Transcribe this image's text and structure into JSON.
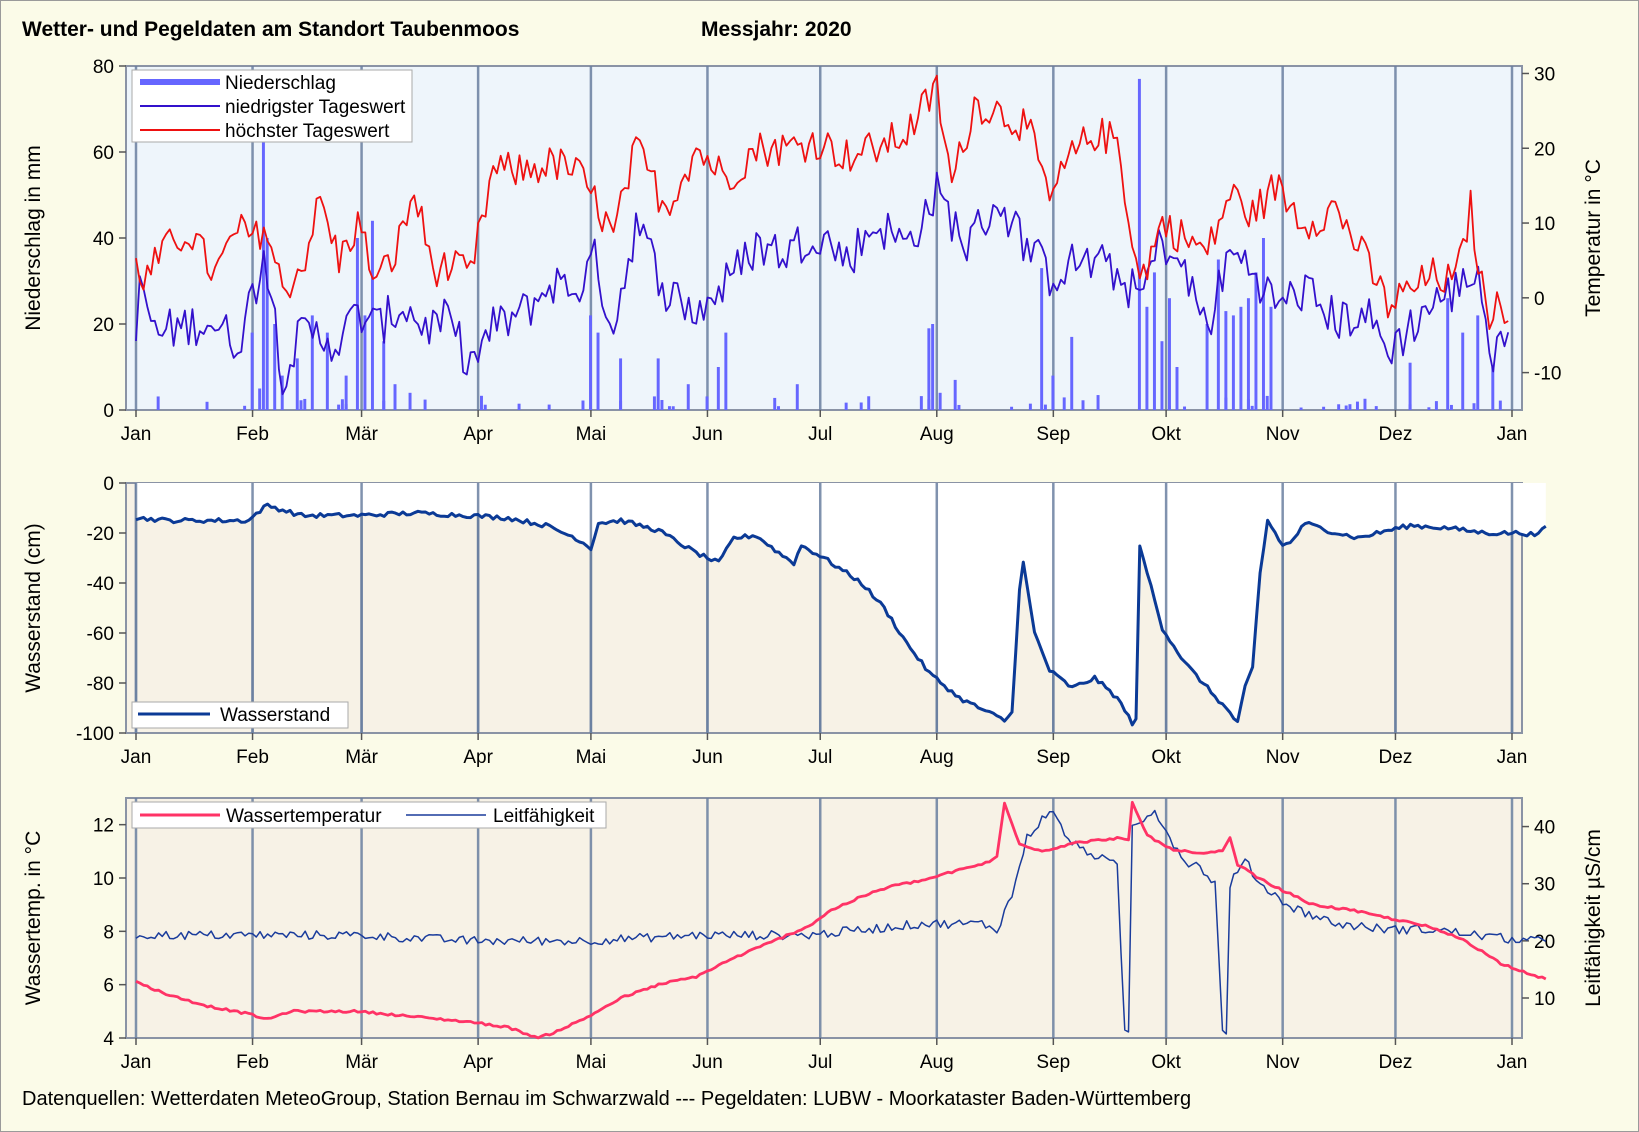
{
  "header": {
    "title": "Wetter- und Pegeldaten am Standort Taubenmoos",
    "year_label": "Messjahr:  2020"
  },
  "footer": {
    "sources": "Datenquellen: Wetterdaten MeteoGroup, Station Bernau im Schwarzwald --- Pegeldaten:  LUBW - Moorkataster Baden-Württemberg"
  },
  "colors": {
    "precip": "#6666ff",
    "tmin": "#3311cc",
    "tmax": "#ee1111",
    "level": "#0b3a96",
    "watertemp": "#ff3366",
    "conductivity": "#1a3c9c",
    "panel1_bg": "#eef5fb",
    "panel_bg": "#f7f2e6",
    "gridline": "#6a7fa0"
  },
  "chart_data": [
    {
      "type": "bar+line",
      "ylabel": "Niederschlag in mm",
      "y2label": "Temperatur in °C",
      "ylim": [
        0,
        80
      ],
      "y2lim": [
        -15,
        31
      ],
      "yticks": [
        0,
        20,
        40,
        60,
        80
      ],
      "y2ticks": [
        -10,
        0,
        10,
        20,
        30
      ],
      "xticks": [
        "Jan",
        "Feb",
        "Mär",
        "Apr",
        "Mai",
        "Jun",
        "Jul",
        "Aug",
        "Sep",
        "Okt",
        "Nov",
        "Dez",
        "Jan"
      ],
      "legend": {
        "placement": "top-left",
        "entries": [
          "Niederschlag",
          "niedrigster Tageswert",
          "höchster Tageswert"
        ]
      },
      "precip_anchor_days": [
        [
          31,
          0
        ],
        [
          32,
          18
        ],
        [
          34,
          5
        ],
        [
          35,
          75
        ],
        [
          36,
          40
        ],
        [
          38,
          20
        ],
        [
          40,
          8
        ],
        [
          44,
          12
        ],
        [
          48,
          22
        ],
        [
          52,
          18
        ],
        [
          57,
          8
        ],
        [
          60,
          40
        ],
        [
          62,
          22
        ],
        [
          64,
          44
        ],
        [
          67,
          16
        ],
        [
          70,
          6
        ],
        [
          74,
          4
        ],
        [
          90,
          0
        ],
        [
          122,
          22
        ],
        [
          124,
          18
        ],
        [
          130,
          12
        ],
        [
          140,
          12
        ],
        [
          148,
          6
        ],
        [
          156,
          10
        ],
        [
          158,
          18
        ],
        [
          177,
          6
        ],
        [
          186,
          0
        ],
        [
          212,
          19
        ],
        [
          213,
          20
        ],
        [
          215,
          4
        ],
        [
          219,
          7
        ],
        [
          242,
          33
        ],
        [
          245,
          8
        ],
        [
          250,
          17
        ],
        [
          268,
          77
        ],
        [
          270,
          24
        ],
        [
          272,
          32
        ],
        [
          274,
          16
        ],
        [
          276,
          26
        ],
        [
          278,
          10
        ],
        [
          286,
          20
        ],
        [
          289,
          35
        ],
        [
          291,
          23
        ],
        [
          293,
          22
        ],
        [
          295,
          24
        ],
        [
          297,
          26
        ],
        [
          299,
          32
        ],
        [
          301,
          40
        ],
        [
          303,
          24
        ],
        [
          340,
          11
        ],
        [
          350,
          26
        ],
        [
          354,
          18
        ],
        [
          358,
          22
        ],
        [
          362,
          10
        ]
      ],
      "tmin_anchor_days": [
        [
          1,
          -8
        ],
        [
          2,
          3
        ],
        [
          6,
          -5
        ],
        [
          12,
          -4
        ],
        [
          20,
          -3
        ],
        [
          28,
          -6
        ],
        [
          33,
          2
        ],
        [
          35,
          7
        ],
        [
          40,
          -10
        ],
        [
          45,
          -5
        ],
        [
          50,
          -5
        ],
        [
          55,
          -6
        ],
        [
          60,
          -2
        ],
        [
          65,
          -4
        ],
        [
          72,
          -1
        ],
        [
          78,
          -4
        ],
        [
          84,
          -3
        ],
        [
          90,
          -9
        ],
        [
          96,
          -4
        ],
        [
          104,
          -2
        ],
        [
          112,
          2
        ],
        [
          118,
          1
        ],
        [
          123,
          5
        ],
        [
          128,
          -4
        ],
        [
          134,
          10
        ],
        [
          142,
          1
        ],
        [
          150,
          -2
        ],
        [
          158,
          2
        ],
        [
          166,
          7
        ],
        [
          174,
          6
        ],
        [
          182,
          9
        ],
        [
          190,
          5
        ],
        [
          198,
          10
        ],
        [
          206,
          7
        ],
        [
          214,
          14
        ],
        [
          222,
          7
        ],
        [
          230,
          13
        ],
        [
          238,
          7
        ],
        [
          244,
          3
        ],
        [
          252,
          5
        ],
        [
          260,
          4
        ],
        [
          268,
          0
        ],
        [
          274,
          8
        ],
        [
          280,
          3
        ],
        [
          286,
          -4
        ],
        [
          292,
          6
        ],
        [
          298,
          4
        ],
        [
          304,
          -1
        ],
        [
          312,
          1
        ],
        [
          320,
          -3
        ],
        [
          328,
          -2
        ],
        [
          334,
          -7
        ],
        [
          338,
          -5
        ],
        [
          345,
          -1
        ],
        [
          352,
          1
        ],
        [
          358,
          4
        ],
        [
          362,
          -10
        ],
        [
          366,
          -2
        ]
      ],
      "tmax_anchor_days": [
        [
          1,
          6
        ],
        [
          3,
          2
        ],
        [
          8,
          6
        ],
        [
          15,
          9
        ],
        [
          22,
          3
        ],
        [
          28,
          9
        ],
        [
          33,
          8
        ],
        [
          35,
          10
        ],
        [
          40,
          1
        ],
        [
          45,
          4
        ],
        [
          50,
          13
        ],
        [
          55,
          5
        ],
        [
          60,
          10
        ],
        [
          65,
          2
        ],
        [
          70,
          6
        ],
        [
          75,
          14
        ],
        [
          80,
          4
        ],
        [
          85,
          4
        ],
        [
          90,
          3
        ],
        [
          96,
          17
        ],
        [
          104,
          17
        ],
        [
          112,
          18
        ],
        [
          118,
          17
        ],
        [
          123,
          13
        ],
        [
          128,
          8
        ],
        [
          134,
          20
        ],
        [
          142,
          12
        ],
        [
          150,
          20
        ],
        [
          158,
          16
        ],
        [
          166,
          20
        ],
        [
          174,
          20
        ],
        [
          182,
          21
        ],
        [
          190,
          19
        ],
        [
          198,
          20
        ],
        [
          206,
          22
        ],
        [
          214,
          28
        ],
        [
          218,
          15
        ],
        [
          224,
          26
        ],
        [
          230,
          25
        ],
        [
          238,
          23
        ],
        [
          244,
          13
        ],
        [
          250,
          19
        ],
        [
          256,
          22
        ],
        [
          262,
          21
        ],
        [
          268,
          2
        ],
        [
          274,
          10
        ],
        [
          280,
          8
        ],
        [
          286,
          6
        ],
        [
          292,
          14
        ],
        [
          298,
          11
        ],
        [
          304,
          15
        ],
        [
          312,
          10
        ],
        [
          320,
          12
        ],
        [
          326,
          7
        ],
        [
          334,
          -1
        ],
        [
          340,
          1
        ],
        [
          346,
          3
        ],
        [
          352,
          2
        ],
        [
          356,
          12
        ],
        [
          360,
          -2
        ],
        [
          366,
          -1
        ]
      ]
    },
    {
      "type": "line",
      "ylabel": "Wasserstand (cm)",
      "ylim": [
        -100,
        0
      ],
      "yticks": [
        -100,
        -80,
        -60,
        -40,
        -20,
        0
      ],
      "xticks": [
        "Jan",
        "Feb",
        "Mär",
        "Apr",
        "Mai",
        "Jun",
        "Jul",
        "Aug",
        "Sep",
        "Okt",
        "Nov",
        "Dez",
        "Jan"
      ],
      "legend": {
        "placement": "bottom-left",
        "entries": [
          "Wasserstand"
        ]
      },
      "series_anchor_days": [
        [
          1,
          -14
        ],
        [
          10,
          -15
        ],
        [
          31,
          -15
        ],
        [
          34,
          -11
        ],
        [
          36,
          -9
        ],
        [
          45,
          -13
        ],
        [
          60,
          -13
        ],
        [
          75,
          -12
        ],
        [
          90,
          -13
        ],
        [
          100,
          -14
        ],
        [
          110,
          -17
        ],
        [
          118,
          -22
        ],
        [
          122,
          -26
        ],
        [
          124,
          -16
        ],
        [
          130,
          -15
        ],
        [
          140,
          -19
        ],
        [
          150,
          -28
        ],
        [
          156,
          -32
        ],
        [
          160,
          -22
        ],
        [
          166,
          -21
        ],
        [
          172,
          -28
        ],
        [
          176,
          -32
        ],
        [
          178,
          -25
        ],
        [
          184,
          -30
        ],
        [
          190,
          -36
        ],
        [
          194,
          -40
        ],
        [
          200,
          -50
        ],
        [
          206,
          -64
        ],
        [
          212,
          -76
        ],
        [
          220,
          -86
        ],
        [
          228,
          -92
        ],
        [
          232,
          -95
        ],
        [
          234,
          -92
        ],
        [
          236,
          -42
        ],
        [
          237,
          -32
        ],
        [
          240,
          -60
        ],
        [
          244,
          -75
        ],
        [
          250,
          -82
        ],
        [
          256,
          -78
        ],
        [
          262,
          -86
        ],
        [
          266,
          -96
        ],
        [
          267,
          -94
        ],
        [
          268,
          -26
        ],
        [
          270,
          -36
        ],
        [
          274,
          -58
        ],
        [
          280,
          -72
        ],
        [
          286,
          -82
        ],
        [
          292,
          -92
        ],
        [
          294,
          -96
        ],
        [
          296,
          -82
        ],
        [
          298,
          -74
        ],
        [
          300,
          -36
        ],
        [
          302,
          -15
        ],
        [
          306,
          -25
        ],
        [
          308,
          -24
        ],
        [
          312,
          -16
        ],
        [
          318,
          -19
        ],
        [
          326,
          -22
        ],
        [
          334,
          -19
        ],
        [
          340,
          -17
        ],
        [
          350,
          -18
        ],
        [
          360,
          -20
        ],
        [
          370,
          -20
        ],
        [
          374,
          -21
        ],
        [
          376,
          -17
        ]
      ]
    },
    {
      "type": "line",
      "ylabel": "Wassertemp. in °C",
      "y2label": "Leitfähigkeit µS/cm",
      "ylim": [
        4,
        13
      ],
      "y2lim": [
        3,
        45
      ],
      "yticks": [
        4,
        6,
        8,
        10,
        12
      ],
      "y2ticks": [
        10,
        20,
        30,
        40
      ],
      "xticks": [
        "Jan",
        "Feb",
        "Mär",
        "Apr",
        "Mai",
        "Jun",
        "Jul",
        "Aug",
        "Sep",
        "Okt",
        "Nov",
        "Dez",
        "Jan"
      ],
      "legend": {
        "placement": "top-left",
        "entries": [
          "Wassertemperatur",
          "Leitfähigkeit"
        ]
      },
      "watertemp_anchor_days": [
        [
          1,
          6.1
        ],
        [
          10,
          5.6
        ],
        [
          20,
          5.2
        ],
        [
          31,
          4.9
        ],
        [
          36,
          4.7
        ],
        [
          42,
          5.0
        ],
        [
          60,
          5.0
        ],
        [
          75,
          4.8
        ],
        [
          90,
          4.6
        ],
        [
          100,
          4.4
        ],
        [
          108,
          4.0
        ],
        [
          112,
          4.2
        ],
        [
          120,
          4.7
        ],
        [
          130,
          5.5
        ],
        [
          140,
          6.0
        ],
        [
          150,
          6.3
        ],
        [
          160,
          7.0
        ],
        [
          170,
          7.6
        ],
        [
          180,
          8.2
        ],
        [
          186,
          8.8
        ],
        [
          194,
          9.3
        ],
        [
          202,
          9.7
        ],
        [
          210,
          9.9
        ],
        [
          220,
          10.3
        ],
        [
          228,
          10.6
        ],
        [
          230,
          10.8
        ],
        [
          232,
          12.8
        ],
        [
          236,
          11.3
        ],
        [
          242,
          11.0
        ],
        [
          250,
          11.3
        ],
        [
          262,
          11.5
        ],
        [
          265,
          11.4
        ],
        [
          266,
          12.8
        ],
        [
          270,
          11.6
        ],
        [
          276,
          11.1
        ],
        [
          284,
          10.9
        ],
        [
          290,
          11.0
        ],
        [
          292,
          11.5
        ],
        [
          294,
          10.5
        ],
        [
          302,
          9.8
        ],
        [
          314,
          9.0
        ],
        [
          324,
          8.8
        ],
        [
          334,
          8.5
        ],
        [
          344,
          8.2
        ],
        [
          354,
          7.7
        ],
        [
          364,
          6.8
        ],
        [
          372,
          6.4
        ],
        [
          376,
          6.2
        ]
      ],
      "conductivity_anchor_days": [
        [
          1,
          21
        ],
        [
          31,
          21
        ],
        [
          60,
          21
        ],
        [
          90,
          20
        ],
        [
          120,
          20
        ],
        [
          150,
          21
        ],
        [
          180,
          21
        ],
        [
          210,
          23
        ],
        [
          226,
          23
        ],
        [
          230,
          22
        ],
        [
          234,
          28
        ],
        [
          238,
          38
        ],
        [
          244,
          43
        ],
        [
          250,
          37
        ],
        [
          256,
          35
        ],
        [
          262,
          33
        ],
        [
          264,
          4
        ],
        [
          265,
          4
        ],
        [
          266,
          40
        ],
        [
          272,
          43
        ],
        [
          276,
          38
        ],
        [
          280,
          34
        ],
        [
          284,
          33
        ],
        [
          288,
          30
        ],
        [
          290,
          4
        ],
        [
          291,
          4
        ],
        [
          292,
          30
        ],
        [
          296,
          34
        ],
        [
          300,
          30
        ],
        [
          308,
          26
        ],
        [
          320,
          23
        ],
        [
          334,
          22
        ],
        [
          346,
          22
        ],
        [
          358,
          21
        ],
        [
          370,
          20
        ],
        [
          376,
          20
        ]
      ]
    }
  ]
}
